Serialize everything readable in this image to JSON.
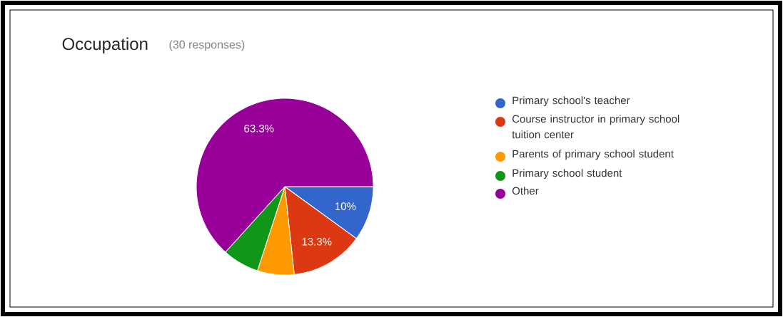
{
  "chart_data": {
    "type": "pie",
    "title": "Occupation",
    "subtitle": "(30 responses)",
    "categories": [
      "Primary school's teacher",
      "Course instructor in primary school tuition center",
      "Parents of primary school student",
      "Primary school student",
      "Other"
    ],
    "values": [
      10,
      13.3,
      6.7,
      6.7,
      63.3
    ],
    "colors": [
      "#3366cc",
      "#dc3912",
      "#ff9900",
      "#109618",
      "#990099"
    ],
    "value_labels": [
      "10%",
      "13.3%",
      null,
      null,
      "63.3%"
    ],
    "legend": "right"
  }
}
